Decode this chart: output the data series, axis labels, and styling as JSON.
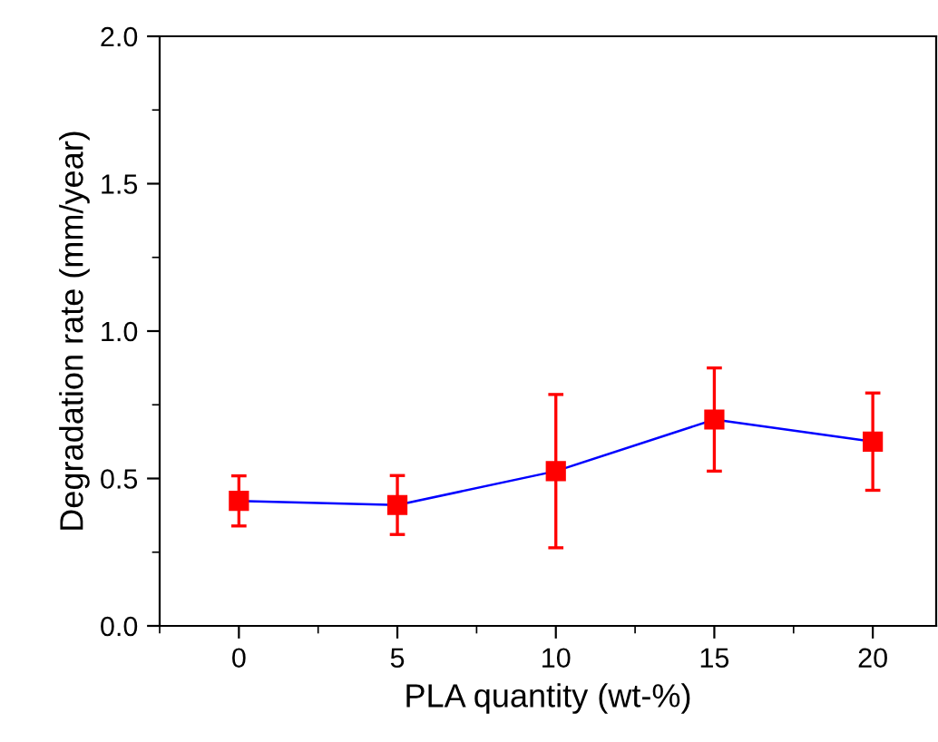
{
  "chart_data": {
    "type": "line",
    "xlabel": "PLA quantity (wt-%)",
    "ylabel": "Degradation rate (mm/year)",
    "x": [
      0,
      5,
      10,
      15,
      20
    ],
    "series": [
      {
        "color": "#0000ff",
        "colors": [
          "#ff0000",
          "#ff0000",
          "#ff0000",
          "#ff0000",
          "#ff0000"
        ],
        "values": [
          0.424,
          0.41,
          0.525,
          0.7,
          0.625
        ],
        "errors": [
          0.085,
          0.1,
          0.26,
          0.175,
          0.165
        ]
      }
    ],
    "marker": "square",
    "line_style": "solid",
    "grid": false,
    "legend": false,
    "xlim": [
      -2.5,
      22
    ],
    "ylim": [
      0,
      2
    ],
    "xticks": [
      0,
      5,
      10,
      15,
      20
    ],
    "yticks": [
      {
        "value": 0,
        "label": "0.0"
      },
      {
        "value": 0.5,
        "label": "0.5"
      },
      {
        "value": 1,
        "label": "1.0"
      },
      {
        "value": 1.5,
        "label": "1.5"
      },
      {
        "value": 2,
        "label": "2.0"
      }
    ]
  }
}
